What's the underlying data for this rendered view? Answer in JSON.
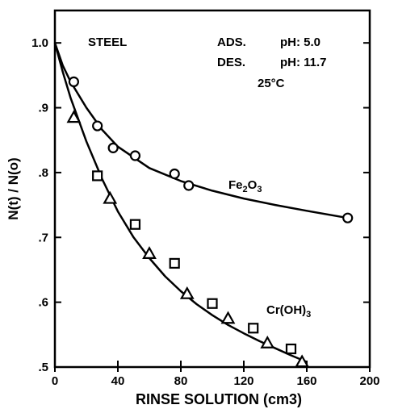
{
  "chart_data": {
    "type": "scatter",
    "xlabel": "RINSE SOLUTION (cm3)",
    "ylabel": "N(t) / N(o)",
    "xlim": [
      0,
      200
    ],
    "ylim": [
      0.5,
      1.05
    ],
    "x_ticks": [
      {
        "value": 0,
        "label": "0"
      },
      {
        "value": 40,
        "label": "40"
      },
      {
        "value": 80,
        "label": "80"
      },
      {
        "value": 120,
        "label": "120"
      },
      {
        "value": 160,
        "label": "160"
      },
      {
        "value": 200,
        "label": "200"
      }
    ],
    "y_ticks": [
      {
        "value": 0.5,
        "label": ".5"
      },
      {
        "value": 0.6,
        "label": ".6"
      },
      {
        "value": 0.7,
        "label": ".7"
      },
      {
        "value": 0.8,
        "label": ".8"
      },
      {
        "value": 0.9,
        "label": ".9"
      },
      {
        "value": 1.0,
        "label": "1.0"
      }
    ],
    "annotations": {
      "material": "STEEL",
      "ads": "ADS.",
      "ads_ph": "pH: 5.0",
      "des": "DES.",
      "des_ph": "pH: 11.7",
      "temp": "25°C"
    },
    "series": [
      {
        "name": "Fe2O3",
        "marker": "circle",
        "points": [
          {
            "x": 12,
            "y": 0.94
          },
          {
            "x": 27,
            "y": 0.872
          },
          {
            "x": 37,
            "y": 0.838
          },
          {
            "x": 51,
            "y": 0.826
          },
          {
            "x": 76,
            "y": 0.798
          },
          {
            "x": 85,
            "y": 0.78
          },
          {
            "x": 186,
            "y": 0.73
          }
        ],
        "curve": [
          [
            0,
            1.0
          ],
          [
            5,
            0.965
          ],
          [
            10,
            0.94
          ],
          [
            20,
            0.9
          ],
          [
            30,
            0.866
          ],
          [
            40,
            0.84
          ],
          [
            60,
            0.807
          ],
          [
            80,
            0.787
          ],
          [
            100,
            0.772
          ],
          [
            120,
            0.76
          ],
          [
            140,
            0.75
          ],
          [
            160,
            0.741
          ],
          [
            186,
            0.73
          ]
        ]
      },
      {
        "name": "Cr(OH)3",
        "marker": "square",
        "points": [
          {
            "x": 27,
            "y": 0.795
          },
          {
            "x": 51,
            "y": 0.72
          },
          {
            "x": 76,
            "y": 0.66
          },
          {
            "x": 100,
            "y": 0.598
          },
          {
            "x": 126,
            "y": 0.56
          },
          {
            "x": 150,
            "y": 0.528
          }
        ],
        "curve": [
          [
            0,
            1.0
          ],
          [
            5,
            0.955
          ],
          [
            10,
            0.915
          ],
          [
            20,
            0.848
          ],
          [
            30,
            0.79
          ],
          [
            40,
            0.74
          ],
          [
            50,
            0.7
          ],
          [
            60,
            0.668
          ],
          [
            70,
            0.64
          ],
          [
            80,
            0.617
          ],
          [
            90,
            0.597
          ],
          [
            100,
            0.58
          ],
          [
            110,
            0.565
          ],
          [
            120,
            0.552
          ],
          [
            130,
            0.54
          ],
          [
            140,
            0.529
          ],
          [
            150,
            0.518
          ],
          [
            160,
            0.508
          ]
        ]
      },
      {
        "name": "Cr(OH)3",
        "marker": "triangle",
        "points": [
          {
            "x": 12,
            "y": 0.885
          },
          {
            "x": 35,
            "y": 0.76
          },
          {
            "x": 60,
            "y": 0.675
          },
          {
            "x": 84,
            "y": 0.613
          },
          {
            "x": 110,
            "y": 0.575
          },
          {
            "x": 135,
            "y": 0.537
          },
          {
            "x": 157,
            "y": 0.508
          }
        ]
      }
    ],
    "curve_labels": {
      "fe2o3": {
        "base": "Fe",
        "sub1": "2",
        "mid": "O",
        "sub2": "3"
      },
      "croh3": {
        "base": "Cr(OH)",
        "sub": "3"
      }
    }
  }
}
